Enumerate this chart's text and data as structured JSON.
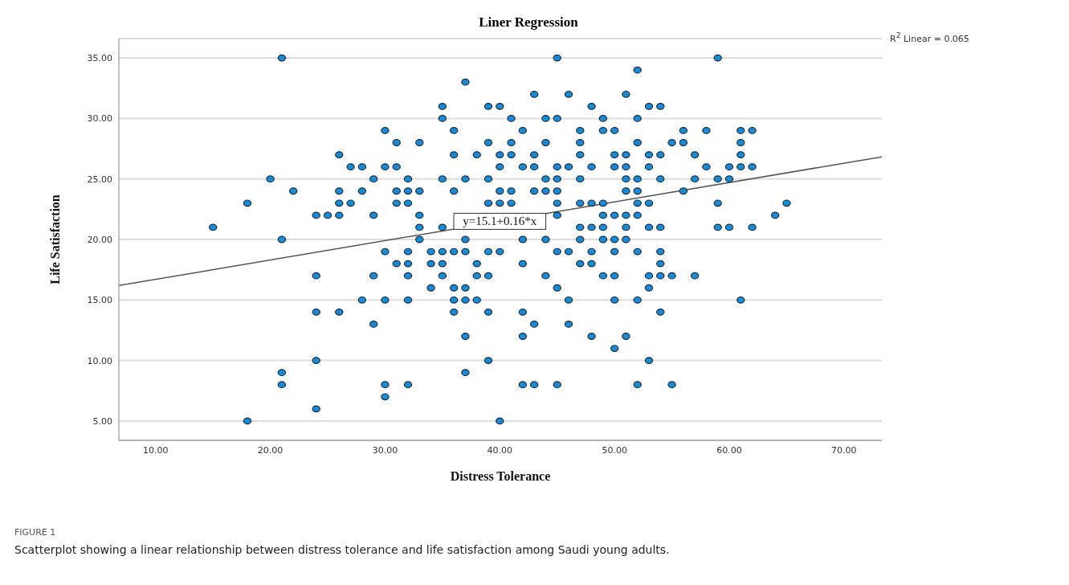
{
  "chart_data": {
    "type": "scatter",
    "title": "Liner Regression",
    "xlabel": "Distress Tolerance",
    "ylabel": "Life Satisfaction",
    "xlim": [
      6.8,
      73.3
    ],
    "ylim": [
      3.4,
      36.6
    ],
    "xticks": [
      {
        "value": 10,
        "label": "10.00"
      },
      {
        "value": 20,
        "label": "20.00"
      },
      {
        "value": 30,
        "label": "30.00"
      },
      {
        "value": 40,
        "label": "40.00"
      },
      {
        "value": 50,
        "label": "50.00"
      },
      {
        "value": 60,
        "label": "60.00"
      },
      {
        "value": 70,
        "label": "70.00"
      }
    ],
    "yticks": [
      {
        "value": 5,
        "label": "5.00"
      },
      {
        "value": 10,
        "label": "10.00"
      },
      {
        "value": 15,
        "label": "15.00"
      },
      {
        "value": 20,
        "label": "20.00"
      },
      {
        "value": 25,
        "label": "25.00"
      },
      {
        "value": 30,
        "label": "30.00"
      },
      {
        "value": 35,
        "label": "35.00"
      }
    ],
    "grid": "y",
    "series": [
      {
        "marker": "circle",
        "color": "#1a8ad4",
        "x": [
          21,
          45,
          59,
          52,
          37,
          43,
          46,
          51,
          35,
          39,
          40,
          48,
          53,
          54,
          35,
          41,
          44,
          45,
          49,
          52,
          30,
          36,
          42,
          47,
          49,
          50,
          56,
          58,
          61,
          62,
          31,
          33,
          39,
          41,
          44,
          47,
          52,
          55,
          56,
          61,
          26,
          36,
          38,
          40,
          41,
          43,
          47,
          50,
          51,
          53,
          54,
          57,
          61,
          27,
          28,
          30,
          31,
          40,
          42,
          43,
          45,
          46,
          48,
          50,
          51,
          53,
          58,
          60,
          61,
          62,
          20,
          29,
          32,
          35,
          37,
          39,
          44,
          45,
          47,
          51,
          52,
          54,
          57,
          59,
          60,
          22,
          26,
          28,
          31,
          32,
          33,
          36,
          40,
          41,
          43,
          44,
          45,
          51,
          52,
          56,
          18,
          26,
          27,
          31,
          32,
          39,
          40,
          41,
          45,
          47,
          48,
          49,
          52,
          53,
          59,
          65,
          24,
          25,
          26,
          29,
          33,
          45,
          49,
          50,
          51,
          52,
          64,
          15,
          33,
          35,
          47,
          48,
          49,
          51,
          53,
          54,
          59,
          60,
          62,
          21,
          33,
          37,
          42,
          44,
          47,
          49,
          50,
          51,
          30,
          32,
          34,
          35,
          36,
          37,
          39,
          40,
          45,
          46,
          48,
          50,
          52,
          54,
          31,
          32,
          34,
          35,
          38,
          42,
          47,
          48,
          54,
          24,
          29,
          32,
          35,
          38,
          39,
          44,
          49,
          50,
          53,
          54,
          55,
          57,
          34,
          36,
          37,
          45,
          53,
          28,
          30,
          32,
          36,
          37,
          38,
          46,
          50,
          52,
          61,
          24,
          26,
          36,
          39,
          42,
          54,
          29,
          43,
          46,
          37,
          42,
          48,
          51,
          50,
          24,
          39,
          53,
          21,
          37,
          21,
          30,
          32,
          42,
          43,
          45,
          52,
          55,
          30,
          24,
          18,
          40
        ],
        "values": [
          35,
          35,
          35,
          34,
          33,
          32,
          32,
          32,
          31,
          31,
          31,
          31,
          31,
          31,
          30,
          30,
          30,
          30,
          30,
          30,
          29,
          29,
          29,
          29,
          29,
          29,
          29,
          29,
          29,
          29,
          28,
          28,
          28,
          28,
          28,
          28,
          28,
          28,
          28,
          28,
          27,
          27,
          27,
          27,
          27,
          27,
          27,
          27,
          27,
          27,
          27,
          27,
          27,
          26,
          26,
          26,
          26,
          26,
          26,
          26,
          26,
          26,
          26,
          26,
          26,
          26,
          26,
          26,
          26,
          26,
          25,
          25,
          25,
          25,
          25,
          25,
          25,
          25,
          25,
          25,
          25,
          25,
          25,
          25,
          25,
          24,
          24,
          24,
          24,
          24,
          24,
          24,
          24,
          24,
          24,
          24,
          24,
          24,
          24,
          24,
          23,
          23,
          23,
          23,
          23,
          23,
          23,
          23,
          23,
          23,
          23,
          23,
          23,
          23,
          23,
          23,
          22,
          22,
          22,
          22,
          22,
          22,
          22,
          22,
          22,
          22,
          22,
          21,
          21,
          21,
          21,
          21,
          21,
          21,
          21,
          21,
          21,
          21,
          21,
          20,
          20,
          20,
          20,
          20,
          20,
          20,
          20,
          20,
          19,
          19,
          19,
          19,
          19,
          19,
          19,
          19,
          19,
          19,
          19,
          19,
          19,
          19,
          18,
          18,
          18,
          18,
          18,
          18,
          18,
          18,
          18,
          17,
          17,
          17,
          17,
          17,
          17,
          17,
          17,
          17,
          17,
          17,
          17,
          17,
          16,
          16,
          16,
          16,
          16,
          15,
          15,
          15,
          15,
          15,
          15,
          15,
          15,
          15,
          15,
          14,
          14,
          14,
          14,
          14,
          14,
          13,
          13,
          13,
          12,
          12,
          12,
          12,
          11,
          10,
          10,
          10,
          9,
          9,
          8,
          8,
          8,
          8,
          8,
          8,
          8,
          8,
          7,
          6,
          5,
          5
        ]
      },
      {
        "type": "line",
        "color": "#555555",
        "x": [
          6.8,
          73.3
        ],
        "values": [
          16.19,
          26.83
        ]
      }
    ],
    "annotations": [
      {
        "text": "y=15.1+0.16*x",
        "x": 40,
        "y": 21.5
      },
      "R$^{2}$ Linear = 0.065",
      "FIGURE 1",
      "Scatterplot showing a linear relationship between distress tolerance and life satisfaction among Saudi young adults."
    ]
  }
}
